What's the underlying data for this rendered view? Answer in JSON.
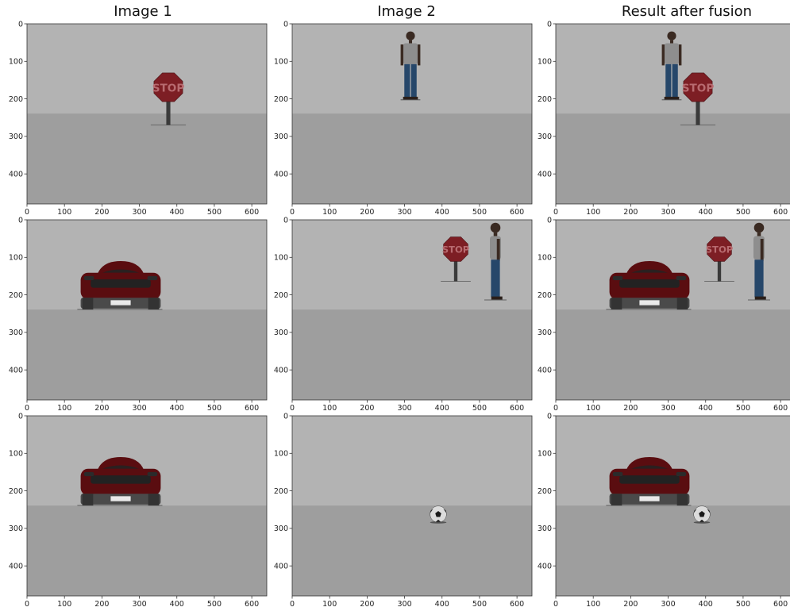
{
  "column_titles": [
    "Image 1",
    "Image 2",
    "Result after fusion"
  ],
  "axes": {
    "x_ticks": [
      "0",
      "100",
      "200",
      "300",
      "400",
      "500",
      "600"
    ],
    "y_ticks": [
      "0",
      "100",
      "200",
      "300",
      "400"
    ],
    "x_range": [
      0,
      640
    ],
    "y_range": [
      0,
      480
    ]
  },
  "colors": {
    "sky": "#b3b3b3",
    "ground": "#9e9e9e",
    "stop_sign": "#7d1e24",
    "car_body": "#5a0d10",
    "shirt": "#8e8e8e",
    "jeans": "#26476a"
  },
  "panels": [
    {
      "row": 0,
      "col": 0,
      "objects": [
        "stop-sign"
      ]
    },
    {
      "row": 0,
      "col": 1,
      "objects": [
        "person"
      ]
    },
    {
      "row": 0,
      "col": 2,
      "objects": [
        "person",
        "stop-sign"
      ]
    },
    {
      "row": 1,
      "col": 0,
      "objects": [
        "car"
      ]
    },
    {
      "row": 1,
      "col": 1,
      "objects": [
        "stop-sign",
        "person"
      ]
    },
    {
      "row": 1,
      "col": 2,
      "objects": [
        "car",
        "stop-sign",
        "person"
      ]
    },
    {
      "row": 2,
      "col": 0,
      "objects": [
        "car"
      ]
    },
    {
      "row": 2,
      "col": 1,
      "objects": [
        "soccer-ball"
      ]
    },
    {
      "row": 2,
      "col": 2,
      "objects": [
        "car",
        "soccer-ball"
      ]
    }
  ],
  "sign_text": "STOP"
}
